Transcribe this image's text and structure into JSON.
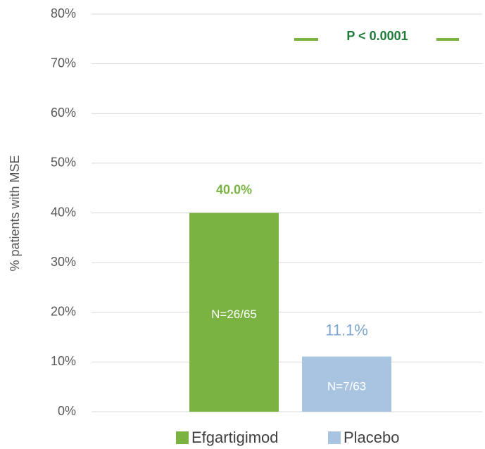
{
  "chart_data": {
    "type": "bar",
    "y_label": "% patients with MSE",
    "annotation": "P < 0.0001",
    "ylim": [
      0,
      80
    ],
    "yticks": [
      {
        "value": 0,
        "label": "0%"
      },
      {
        "value": 10,
        "label": "10%"
      },
      {
        "value": 20,
        "label": "20%"
      },
      {
        "value": 30,
        "label": "30%"
      },
      {
        "value": 40,
        "label": "40%"
      },
      {
        "value": 50,
        "label": "50%"
      },
      {
        "value": 60,
        "label": "60%"
      },
      {
        "value": 70,
        "label": "70%"
      },
      {
        "value": 80,
        "label": "80%"
      }
    ],
    "grid": true,
    "legend": "bottom",
    "series": [
      {
        "name": "Efgartigimod",
        "color": "#7ab342",
        "values": [
          40.0
        ],
        "value_labels": [
          "40.0%"
        ],
        "sample_labels": [
          "N=26/65"
        ]
      },
      {
        "name": "Placebo",
        "color": "#a9c4e0",
        "values": [
          11.1
        ],
        "value_labels": [
          "11.1%"
        ],
        "sample_labels": [
          "N=7/63"
        ]
      }
    ]
  }
}
